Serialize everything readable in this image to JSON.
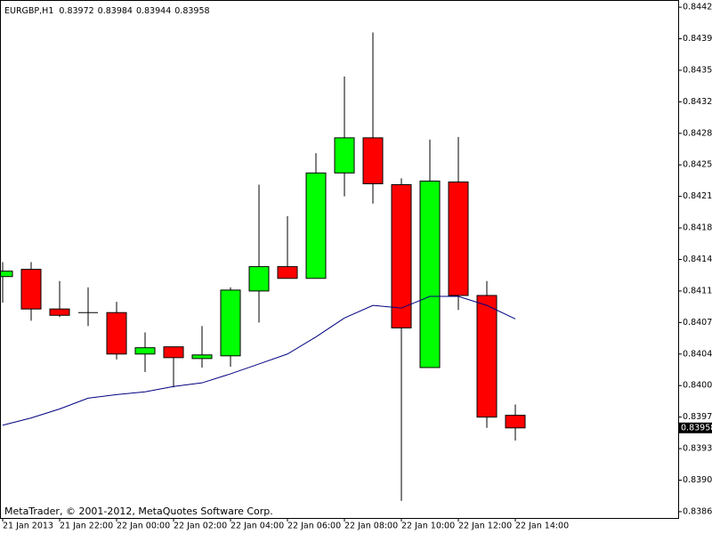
{
  "chart_data": {
    "type": "candlestick",
    "title": "EURGBP,H1",
    "annotation": "MetaTrader, © 2001-2012, MetaQuotes Software Corp.",
    "categories": [
      "21 Jan 2013",
      null,
      "21 Jan 22:00",
      null,
      "22 Jan 00:00",
      null,
      "22 Jan 02:00",
      null,
      "22 Jan 04:00",
      null,
      "22 Jan 06:00",
      null,
      "22 Jan 08:00",
      null,
      "22 Jan 10:00",
      null,
      "22 Jan 12:00",
      null,
      "22 Jan 14:00"
    ],
    "open": [
      0.84126,
      0.84134,
      0.8409,
      0.84086,
      0.84086,
      0.8404,
      0.84048,
      0.84035,
      0.84038,
      0.8411,
      0.84137,
      0.84124,
      0.84241,
      0.8428,
      0.84228,
      0.84025,
      0.84231,
      0.84105,
      0.83972
    ],
    "high": [
      0.84142,
      0.84142,
      0.84121,
      0.84114,
      0.84098,
      0.84064,
      0.84048,
      0.84071,
      0.84114,
      0.84228,
      0.84193,
      0.84263,
      0.84348,
      0.84397,
      0.84235,
      0.84278,
      0.84281,
      0.84121,
      0.83984
    ],
    "low": [
      0.84097,
      0.84077,
      0.84081,
      0.84071,
      0.84034,
      0.8402,
      0.84003,
      0.84025,
      0.84026,
      0.84075,
      0.84124,
      0.84124,
      0.84215,
      0.84207,
      0.83877,
      0.84025,
      0.84089,
      0.83958,
      0.83944
    ],
    "close": [
      0.84132,
      0.8409,
      0.84083,
      0.84086,
      0.8404,
      0.84047,
      0.84036,
      0.84039,
      0.84111,
      0.84137,
      0.84124,
      0.84241,
      0.8428,
      0.84229,
      0.84069,
      0.84232,
      0.84105,
      0.8397,
      0.83958
    ],
    "up_color": "#00ff00",
    "down_color": "#ff0000",
    "moving_average": {
      "color": "#000080",
      "values": [
        0.83961,
        0.83969,
        0.83979,
        0.83991,
        0.83995,
        0.83998,
        0.84004,
        0.84008,
        0.84018,
        0.84029,
        0.8404,
        0.84059,
        0.8408,
        0.84094,
        0.84091,
        0.84104,
        0.84104,
        0.84094,
        0.84079
      ]
    },
    "ylim": [
      0.83858,
      0.84433
    ],
    "yticks": [
      0.84425,
      {
        "value": 0.8439,
        "label": "0.84390"
      },
      0.84355,
      {
        "value": 0.8432,
        "label": "0.84320"
      },
      0.84285,
      {
        "value": 0.8425,
        "label": "0.84250"
      },
      0.84215,
      {
        "value": 0.8418,
        "label": "0.84180"
      },
      0.84145,
      {
        "value": 0.8411,
        "label": "0.84110"
      },
      0.84075,
      {
        "value": 0.8404,
        "label": "0.84040"
      },
      0.84005,
      {
        "value": 0.8397,
        "label": "0.83970"
      },
      0.83935,
      {
        "value": 0.839,
        "label": "0.83900"
      },
      0.83865
    ]
  }
}
